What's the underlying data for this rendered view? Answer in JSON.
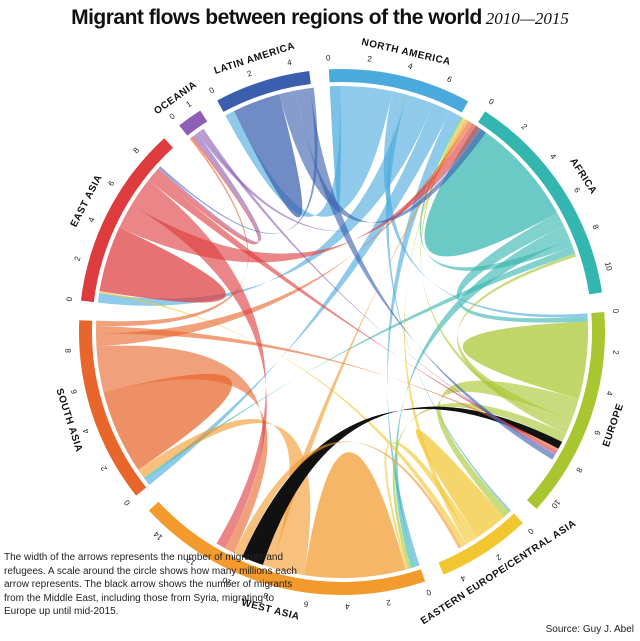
{
  "title": {
    "main": "Migrant flows between regions of the world",
    "years": "2010—2015"
  },
  "note": "The width of the arrows represents the number of migrants and refugees. A scale around the circle shows how many millions each arrow represents. The black arrow shows the number of migrants from the Middle East, including those from Syria, migrating to Europe up until mid-2015.",
  "source": "Source: Guy J. Abel",
  "colors": {
    "North America": "#4aa9dd",
    "Africa": "#33b5b0",
    "Europe": "#a7c62f",
    "Eastern Europe/Central Asia": "#f2c631",
    "West Asia": "#f39a2d",
    "South Asia": "#e8652b",
    "East Asia": "#dd3b3d",
    "Oceania": "#8d5fb5",
    "Latin America": "#3a5fae",
    "middle_east_arrow": "#111111"
  },
  "chart_data": {
    "type": "chord",
    "title": "Migrant flows between regions of the world",
    "subtitle": "2010—2015",
    "units": "millions",
    "regions": [
      {
        "name": "NORTH AMERICA",
        "total": 7.3,
        "ticks": [
          "0",
          "2",
          "4",
          "6"
        ]
      },
      {
        "name": "AFRICA",
        "total": 11.2,
        "ticks": [
          "0",
          "2",
          "4",
          "6",
          "8",
          "10"
        ]
      },
      {
        "name": "EUROPE",
        "total": 10.8,
        "ticks": [
          "0",
          "2",
          "4",
          "6",
          "8",
          "10"
        ]
      },
      {
        "name": "EASTERN EUROPE/CENTRAL ASIA",
        "total": 4.8,
        "ticks": [
          "0",
          "2",
          "4"
        ]
      },
      {
        "name": "WEST ASIA",
        "total": 15.2,
        "ticks": [
          "0",
          "2",
          "4",
          "6",
          "8",
          "10",
          "12",
          "14"
        ]
      },
      {
        "name": "SOUTH ASIA",
        "total": 9.5,
        "ticks": [
          "0",
          "2",
          "4",
          "6",
          "8"
        ]
      },
      {
        "name": "EAST ASIA",
        "total": 9.4,
        "ticks": [
          "0",
          "2",
          "4",
          "6",
          "8"
        ]
      },
      {
        "name": "OCEANIA",
        "total": 1.3,
        "ticks": [
          "0",
          "1"
        ]
      },
      {
        "name": "LATIN AMERICA",
        "total": 4.9,
        "ticks": [
          "0",
          "2",
          "4"
        ]
      }
    ],
    "flows": [
      {
        "from": "NORTH AMERICA",
        "to": "NORTH AMERICA",
        "value": 0.6
      },
      {
        "from": "NORTH AMERICA",
        "to": "LATIN AMERICA",
        "value": 2.8
      },
      {
        "from": "NORTH AMERICA",
        "to": "EUROPE",
        "value": 0.5
      },
      {
        "from": "NORTH AMERICA",
        "to": "EASTERN EUROPE/CENTRAL ASIA",
        "value": 0.3
      },
      {
        "from": "NORTH AMERICA",
        "to": "EAST ASIA",
        "value": 1.5
      },
      {
        "from": "NORTH AMERICA",
        "to": "SOUTH ASIA",
        "value": 1.0
      },
      {
        "from": "NORTH AMERICA",
        "to": "WEST ASIA",
        "value": 0.6
      },
      {
        "from": "AFRICA",
        "to": "AFRICA",
        "value": 6.5
      },
      {
        "from": "AFRICA",
        "to": "EUROPE",
        "value": 0.8
      },
      {
        "from": "AFRICA",
        "to": "WEST ASIA",
        "value": 0.8
      },
      {
        "from": "AFRICA",
        "to": "NORTH AMERICA",
        "value": 0.4
      },
      {
        "from": "AFRICA",
        "to": "SOUTH ASIA",
        "value": 0.4
      },
      {
        "from": "EUROPE",
        "to": "EUROPE",
        "value": 4.2
      },
      {
        "from": "EUROPE",
        "to": "EASTERN EUROPE/CENTRAL ASIA",
        "value": 1.2
      },
      {
        "from": "EUROPE",
        "to": "AFRICA",
        "value": 0.5
      },
      {
        "from": "EUROPE",
        "to": "NORTH AMERICA",
        "value": 0.3
      },
      {
        "from": "EUROPE",
        "to": "WEST ASIA",
        "value": 0.5
      },
      {
        "from": "EASTERN EUROPE/CENTRAL ASIA",
        "to": "EASTERN EUROPE/CENTRAL ASIA",
        "value": 1.8
      },
      {
        "from": "EASTERN EUROPE/CENTRAL ASIA",
        "to": "WEST ASIA",
        "value": 0.4
      },
      {
        "from": "EASTERN EUROPE/CENTRAL ASIA",
        "to": "NORTH AMERICA",
        "value": 0.3
      },
      {
        "from": "EASTERN EUROPE/CENTRAL ASIA",
        "to": "EAST ASIA",
        "value": 0.3
      },
      {
        "from": "WEST ASIA",
        "to": "WEST ASIA",
        "value": 5.5
      },
      {
        "from": "WEST ASIA",
        "to": "SOUTH ASIA",
        "value": 1.8
      },
      {
        "from": "WEST ASIA",
        "to": "NORTH AMERICA",
        "value": 0.5
      },
      {
        "from": "WEST ASIA",
        "to": "EUROPE",
        "value": 1.2,
        "highlight": "middle_east_arrow"
      },
      {
        "from": "WEST ASIA",
        "to": "EASTERN EUROPE/CENTRAL ASIA",
        "value": 0.5
      },
      {
        "from": "SOUTH ASIA",
        "to": "SOUTH ASIA",
        "value": 4.6
      },
      {
        "from": "SOUTH ASIA",
        "to": "WEST ASIA",
        "value": 2.5
      },
      {
        "from": "SOUTH ASIA",
        "to": "NORTH AMERICA",
        "value": 0.7
      },
      {
        "from": "SOUTH ASIA",
        "to": "EUROPE",
        "value": 0.4
      },
      {
        "from": "SOUTH ASIA",
        "to": "OCEANIA",
        "value": 0.3
      },
      {
        "from": "EAST ASIA",
        "to": "EAST ASIA",
        "value": 3.6
      },
      {
        "from": "EAST ASIA",
        "to": "NORTH AMERICA",
        "value": 1.4
      },
      {
        "from": "EAST ASIA",
        "to": "WEST ASIA",
        "value": 1.6
      },
      {
        "from": "EAST ASIA",
        "to": "EUROPE",
        "value": 0.5
      },
      {
        "from": "EAST ASIA",
        "to": "OCEANIA",
        "value": 0.3
      },
      {
        "from": "OCEANIA",
        "to": "EAST ASIA",
        "value": 0.3
      },
      {
        "from": "OCEANIA",
        "to": "NORTH AMERICA",
        "value": 0.2
      },
      {
        "from": "OCEANIA",
        "to": "EUROPE",
        "value": 0.2
      },
      {
        "from": "LATIN AMERICA",
        "to": "LATIN AMERICA",
        "value": 2.6
      },
      {
        "from": "LATIN AMERICA",
        "to": "NORTH AMERICA",
        "value": 0.9
      },
      {
        "from": "LATIN AMERICA",
        "to": "EUROPE",
        "value": 0.8
      },
      {
        "from": "LATIN AMERICA",
        "to": "EAST ASIA",
        "value": 0.2
      }
    ],
    "grid": false,
    "legend": "none"
  }
}
